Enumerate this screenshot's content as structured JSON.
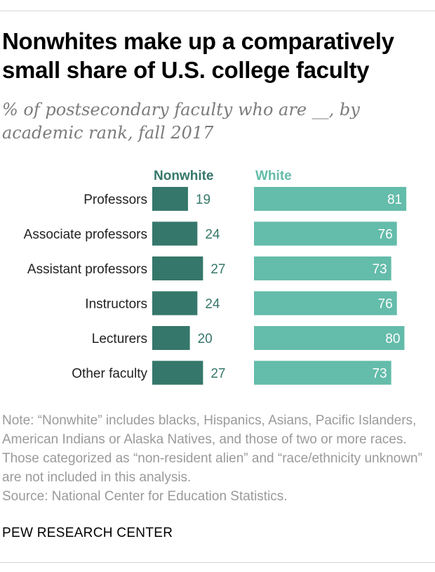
{
  "title": "Nonwhites make up a comparatively small share of U.S. college faculty",
  "subtitle": "% of postsecondary faculty who are __, by academic rank, fall 2017",
  "colors": {
    "nonwhite": "#35776a",
    "white": "#64bcaa",
    "label": "#222222",
    "subtitle": "#7b7b7b",
    "note": "#9a9a9a"
  },
  "chart_data": {
    "type": "bar",
    "orientation": "horizontal",
    "title": "Nonwhites make up a comparatively small share of U.S. college faculty",
    "subtitle": "% of postsecondary faculty who are __, by academic rank, fall 2017",
    "categories": [
      "Professors",
      "Associate professors",
      "Assistant professors",
      "Instructors",
      "Lecturers",
      "Other faculty"
    ],
    "series": [
      {
        "name": "Nonwhite",
        "values": [
          19,
          24,
          27,
          24,
          20,
          27
        ]
      },
      {
        "name": "White",
        "values": [
          81,
          76,
          73,
          76,
          80,
          73
        ]
      }
    ],
    "xlim": [
      0,
      100
    ],
    "grid": false,
    "legend": "top, above each bar column"
  },
  "note": "Note: “Nonwhite” includes blacks, Hispanics, Asians, Pacific Islanders, American Indians or Alaska Natives, and those of two or more races. Those categorized as “non-resident alien” and “race/ethnicity unknown” are not included in this analysis.",
  "source": "Source: National Center for Education Statistics.",
  "brand": "PEW RESEARCH CENTER"
}
